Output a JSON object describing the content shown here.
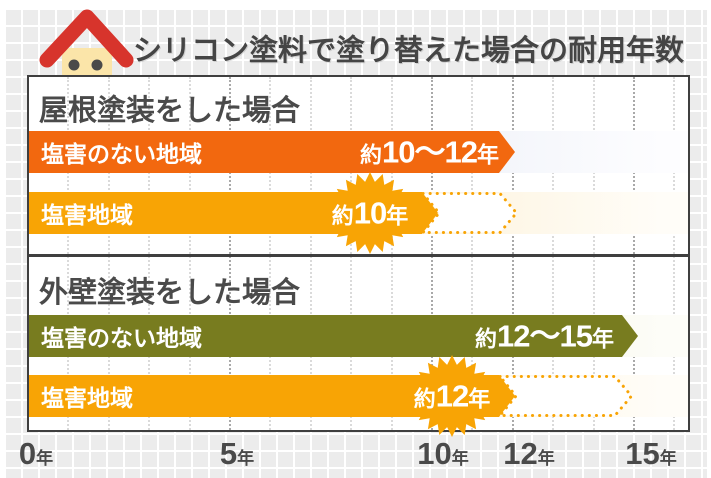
{
  "title": "シリコン塗料で塗り替えた場合の耐用年数",
  "sections": [
    {
      "heading": "屋根塗装をした場合",
      "bars": [
        {
          "label": "塩害のない地域",
          "value_prefix": "約",
          "value_num": "10〜12",
          "value_suffix": "年"
        },
        {
          "label": "塩害地域",
          "value_prefix": "約",
          "value_num": "10",
          "value_suffix": "年"
        }
      ]
    },
    {
      "heading": "外壁塗装をした場合",
      "bars": [
        {
          "label": "塩害のない地域",
          "value_prefix": "約",
          "value_num": "12〜15",
          "value_suffix": "年"
        },
        {
          "label": "塩害地域",
          "value_prefix": "約",
          "value_num": "12",
          "value_suffix": "年"
        }
      ]
    }
  ],
  "axis": {
    "ticks": [
      {
        "num": "0",
        "unit": "年"
      },
      {
        "num": "5",
        "unit": "年"
      },
      {
        "num": "10",
        "unit": "年"
      },
      {
        "num": "12",
        "unit": "年"
      },
      {
        "num": "15",
        "unit": "年"
      }
    ]
  },
  "colors": {
    "bar_roof_no_salt": "#f2680f",
    "bar_salt_orange": "#f8a405",
    "bar_wall_no_salt": "#787c1f",
    "heading_text": "#4a4a4a",
    "panel_border": "#3f3f3f",
    "house_roof_red": "#d7342c",
    "house_body_cream": "#fbe5a9"
  },
  "chart_data": {
    "type": "bar",
    "title": "シリコン塗料で塗り替えた場合の耐用年数",
    "orientation": "horizontal",
    "x_unit": "年",
    "x_ticks": [
      0,
      5,
      10,
      12,
      15
    ],
    "xlim": [
      0,
      16.4
    ],
    "grid": "dotted vertical lines every 1 year, emphasized at 5/10/12/15",
    "groups": [
      {
        "name": "屋根塗装をした場合",
        "bars": [
          {
            "label": "塩害のない地域",
            "value_label": "約10〜12年",
            "range_years": [
              10,
              12
            ],
            "solid_end_years": 12,
            "dashed_end_years": null,
            "starburst": false,
            "color": "#f2680f"
          },
          {
            "label": "塩害地域",
            "value_label": "約10年",
            "range_years": [
              10,
              10
            ],
            "solid_end_years": 10,
            "dashed_end_years": 12,
            "starburst": true,
            "color": "#f8a405"
          }
        ]
      },
      {
        "name": "外壁塗装をした場合",
        "bars": [
          {
            "label": "塩害のない地域",
            "value_label": "約12〜15年",
            "range_years": [
              12,
              15
            ],
            "solid_end_years": 15,
            "dashed_end_years": null,
            "starburst": false,
            "color": "#787c1f"
          },
          {
            "label": "塩害地域",
            "value_label": "約12年",
            "range_years": [
              12,
              12
            ],
            "solid_end_years": 12,
            "dashed_end_years": 15,
            "starburst": true,
            "color": "#f8a405"
          }
        ]
      }
    ]
  }
}
